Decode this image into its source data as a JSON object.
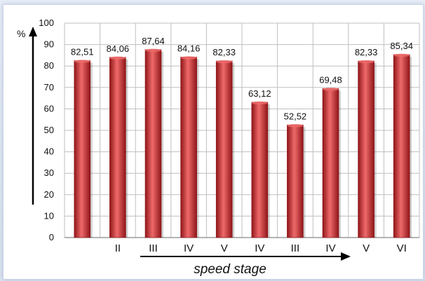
{
  "chart_data": {
    "type": "bar",
    "categories": [
      "",
      "II",
      "III",
      "IV",
      "V",
      "IV",
      "III",
      "IV",
      "V",
      "VI"
    ],
    "values": [
      82.51,
      84.06,
      87.64,
      84.16,
      82.33,
      63.12,
      52.52,
      69.48,
      82.33,
      85.34
    ],
    "value_labels": [
      "82,51",
      "84,06",
      "87,64",
      "84,16",
      "82,33",
      "63,12",
      "52,52",
      "69,48",
      "82,33",
      "85,34"
    ],
    "ylim": [
      0,
      100
    ],
    "yticks": [
      0,
      10,
      20,
      30,
      40,
      50,
      60,
      70,
      80,
      90,
      100
    ],
    "ylabel": "%",
    "xlabel": "speed stage",
    "grid": true,
    "colors": {
      "bar": "#c8282a",
      "bar_light": "#ef6a6a",
      "bar_dark": "#8f1518",
      "grid": "#bfbfbf"
    }
  }
}
